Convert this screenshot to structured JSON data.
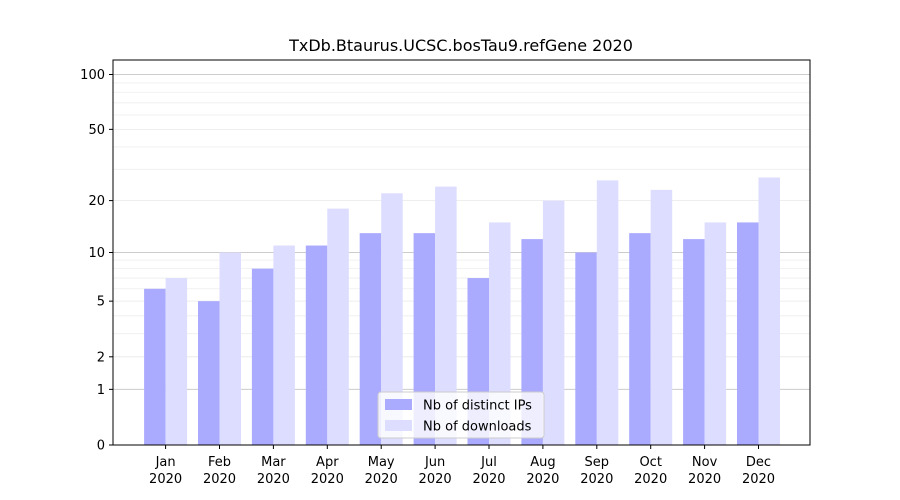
{
  "chart_data": {
    "type": "bar",
    "title": "TxDb.Btaurus.UCSC.bosTau9.refGene 2020",
    "xlabel": "",
    "ylabel": "",
    "y_scale": "log1p",
    "ylim": [
      0,
      120
    ],
    "yticks": [
      0,
      1,
      2,
      5,
      10,
      20,
      50,
      100
    ],
    "grid": "horizontal",
    "legend_position": "bottom-center",
    "categories": [
      [
        "Jan",
        "2020"
      ],
      [
        "Feb",
        "2020"
      ],
      [
        "Mar",
        "2020"
      ],
      [
        "Apr",
        "2020"
      ],
      [
        "May",
        "2020"
      ],
      [
        "Jun",
        "2020"
      ],
      [
        "Jul",
        "2020"
      ],
      [
        "Aug",
        "2020"
      ],
      [
        "Sep",
        "2020"
      ],
      [
        "Oct",
        "2020"
      ],
      [
        "Nov",
        "2020"
      ],
      [
        "Dec",
        "2020"
      ]
    ],
    "series": [
      {
        "name": "Nb of distinct IPs",
        "color": "#aaaaff",
        "values": [
          6,
          5,
          8,
          11,
          13,
          13,
          7,
          12,
          10,
          13,
          12,
          15
        ]
      },
      {
        "name": "Nb of downloads",
        "color": "#ddddff",
        "values": [
          7,
          10,
          11,
          18,
          22,
          24,
          15,
          20,
          26,
          23,
          15,
          27
        ]
      }
    ]
  }
}
